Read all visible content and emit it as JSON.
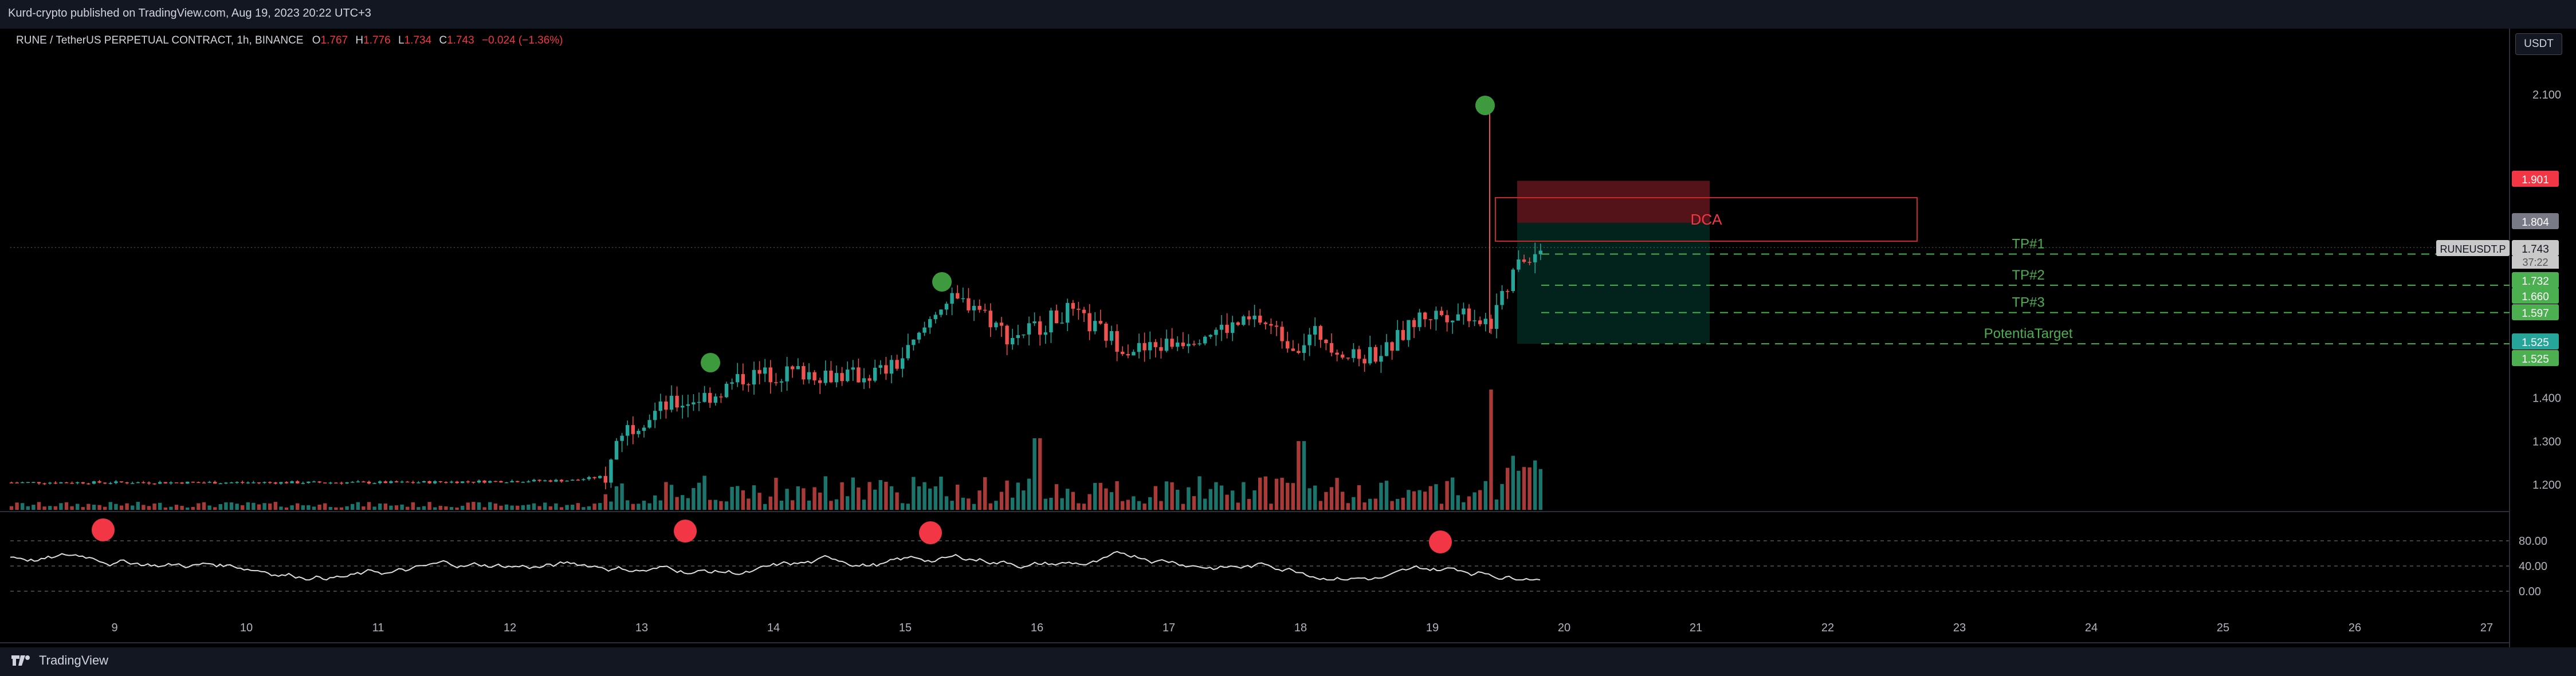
{
  "publisher_line": "Kurd-crypto published on TradingView.com, Aug 19, 2023 20:22 UTC+3",
  "symbol": {
    "name": "RUNE / TetherUS PERPETUAL CONTRACT, 1h, BINANCE",
    "open_label": "O",
    "open": "1.767",
    "high_label": "H",
    "high": "1.776",
    "low_label": "L",
    "low": "1.734",
    "close_label": "C",
    "close": "1.743",
    "change": "−0.024 (−1.36%)"
  },
  "currency_button": "USDT",
  "footer": {
    "brand": "TradingView"
  },
  "colors": {
    "up": "#26a69a",
    "down": "#ef5350",
    "signal_green": "#3d9b3d",
    "signal_red": "#f23645",
    "target_line": "#4caf50",
    "dca": "#f23645"
  },
  "chart_data": {
    "type": "candlestick",
    "price_axis": {
      "range": [
        1.12,
        2.2
      ],
      "ticks": [
        "2.100",
        "1.400",
        "1.300",
        "1.200"
      ]
    },
    "price_labels": [
      {
        "value": 1.901,
        "text": "1.901",
        "color": "#f23645"
      },
      {
        "value": 1.804,
        "text": "1.804",
        "color": "#787b86"
      },
      {
        "value": 1.743,
        "text": "1.743",
        "color": "#c9c9c9"
      },
      {
        "value": 1.732,
        "text": "1.732",
        "color": "#4caf50"
      },
      {
        "value": 1.66,
        "text": "1.660",
        "color": "#4caf50"
      },
      {
        "value": 1.597,
        "text": "1.597",
        "color": "#4caf50"
      },
      {
        "value": 1.525,
        "text": "1.525",
        "color": "#26a69a"
      },
      {
        "value": 1.525,
        "text": "1.525",
        "color": "#4caf50"
      }
    ],
    "symbol_tag": {
      "text": "RUNEUSDT.P",
      "countdown": "37:22"
    },
    "time_axis": [
      "9",
      "10",
      "11",
      "12",
      "13",
      "14",
      "15",
      "16",
      "17",
      "18",
      "19",
      "20",
      "21",
      "22",
      "23",
      "24",
      "25",
      "26",
      "27"
    ],
    "targets": [
      {
        "label": "TP#1",
        "value": 1.732
      },
      {
        "label": "TP#2",
        "value": 1.66
      },
      {
        "label": "TP#3",
        "value": 1.597
      },
      {
        "label": "PotentiaTarget",
        "value": 1.525
      }
    ],
    "dca_zone": {
      "label": "DCA",
      "top": 1.901,
      "bottom": 1.804
    },
    "entry_zone": {
      "top": 1.804,
      "bottom": 1.525
    },
    "oscillator": {
      "range": [
        0,
        100
      ],
      "ticks": [
        "80.00",
        "40.00",
        "0.00"
      ]
    }
  }
}
